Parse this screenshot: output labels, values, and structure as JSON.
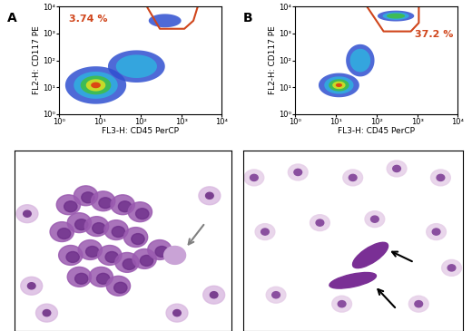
{
  "chart_data": [
    {
      "type": "scatter",
      "panel": "A",
      "xlabel": "FL3-H: CD45 PerCP",
      "ylabel": "FL2-H: CD117 PE",
      "log": true,
      "xlim": [
        1,
        10000
      ],
      "ylim": [
        1,
        10000
      ],
      "xticks": [
        {
          "value": 1,
          "label": "10⁰"
        },
        {
          "value": 10,
          "label": "10¹"
        },
        {
          "value": 100,
          "label": "10²"
        },
        {
          "value": 1000,
          "label": "10³"
        },
        {
          "value": 10000,
          "label": "10⁴"
        }
      ],
      "yticks": [
        {
          "value": 1,
          "label": "10⁰"
        },
        {
          "value": 10,
          "label": "10¹"
        },
        {
          "value": 100,
          "label": "10²"
        },
        {
          "value": 1000,
          "label": "10³"
        },
        {
          "value": 10000,
          "label": "10⁴"
        }
      ],
      "populations": [
        {
          "center": [
            8,
            12
          ],
          "spread": [
            0.75,
            0.7
          ],
          "density": 5
        },
        {
          "center": [
            80,
            60
          ],
          "spread": [
            0.7,
            0.6
          ],
          "density": 2
        },
        {
          "center": [
            400,
            3000
          ],
          "spread": [
            0.4,
            0.25
          ],
          "density": 1
        }
      ],
      "gate": {
        "points": [
          [
            150,
            9000
          ],
          [
            300,
            1500
          ],
          [
            1200,
            1500
          ],
          [
            2000,
            3000
          ],
          [
            2500,
            9000
          ]
        ],
        "value": 3.74,
        "label": "3.74 %",
        "color": "#d0451b"
      }
    },
    {
      "type": "scatter",
      "panel": "B",
      "xlabel": "FL3-H: CD45 PerCP",
      "ylabel": "FL2-H: CD117 PE",
      "log": true,
      "xlim": [
        1,
        10000
      ],
      "ylim": [
        1,
        10000
      ],
      "xticks": [
        {
          "value": 1,
          "label": "10⁰"
        },
        {
          "value": 10,
          "label": "10¹"
        },
        {
          "value": 100,
          "label": "10²"
        },
        {
          "value": 1000,
          "label": "10³"
        },
        {
          "value": 10000,
          "label": "10⁴"
        }
      ],
      "yticks": [
        {
          "value": 1,
          "label": "10⁰"
        },
        {
          "value": 10,
          "label": "10¹"
        },
        {
          "value": 100,
          "label": "10²"
        },
        {
          "value": 1000,
          "label": "10³"
        },
        {
          "value": 10000,
          "label": "10⁴"
        }
      ],
      "populations": [
        {
          "center": [
            12,
            12
          ],
          "spread": [
            0.5,
            0.45
          ],
          "density": 5
        },
        {
          "center": [
            40,
            100
          ],
          "spread": [
            0.35,
            0.6
          ],
          "density": 2
        },
        {
          "center": [
            300,
            4500
          ],
          "spread": [
            0.45,
            0.2
          ],
          "density": 3
        }
      ],
      "gate": {
        "points": [
          [
            60,
            9500
          ],
          [
            150,
            1200
          ],
          [
            700,
            1200
          ],
          [
            1100,
            2500
          ],
          [
            1100,
            9500
          ]
        ],
        "value": 37.2,
        "label": "37.2 %",
        "color": "#d0451b"
      }
    }
  ]
}
